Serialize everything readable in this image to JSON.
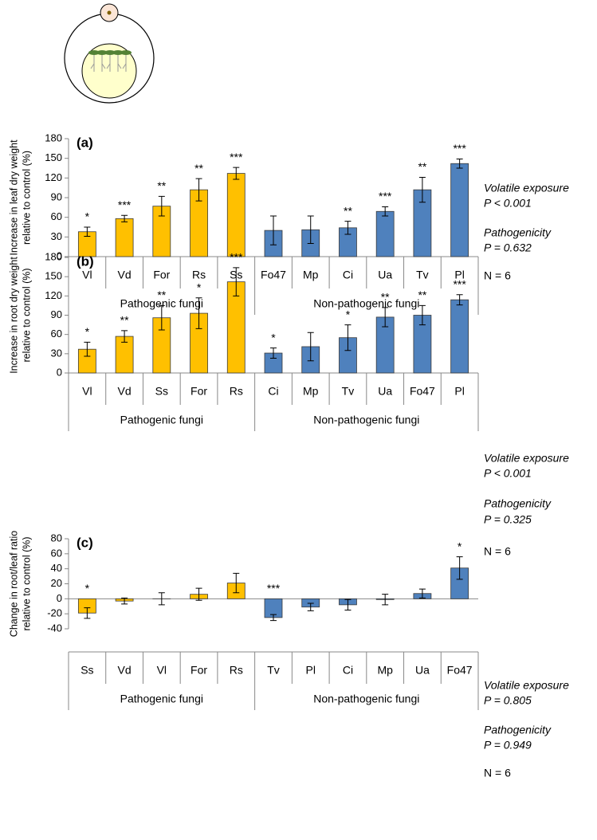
{
  "chart_data": [
    {
      "type": "bar",
      "panel_label": "(a)",
      "ylabel": [
        "Increase in leaf dry weight",
        "relative to control (%)"
      ],
      "categories": [
        "Vl",
        "Vd",
        "For",
        "Rs",
        "Ss",
        "Fo47",
        "Mp",
        "Ci",
        "Ua",
        "Tv",
        "Pl"
      ],
      "values": [
        38,
        58,
        77,
        102,
        127,
        40,
        41,
        44,
        69,
        102,
        142
      ],
      "errors": [
        7,
        5,
        15,
        17,
        9,
        22,
        21,
        10,
        7,
        19,
        7
      ],
      "significance": [
        "*",
        "***",
        "**",
        "**",
        "***",
        null,
        null,
        "**",
        "***",
        "**",
        "***"
      ],
      "colors": [
        "#ffc000",
        "#ffc000",
        "#ffc000",
        "#ffc000",
        "#ffc000",
        "#4f81bd",
        "#4f81bd",
        "#4f81bd",
        "#4f81bd",
        "#4f81bd",
        "#4f81bd"
      ],
      "groups": [
        "Pathogenic fungi",
        "Non-pathogenic fungi"
      ],
      "ylim": [
        0,
        180
      ],
      "yticks": [
        0,
        30,
        60,
        90,
        120,
        150,
        180
      ],
      "annotations": [
        [
          "Volatile exposure",
          "P < 0.001"
        ],
        [
          "Pathogenicity",
          "P = 0.632"
        ],
        [
          "N = 6"
        ]
      ]
    },
    {
      "type": "bar",
      "panel_label": "(b)",
      "ylabel": [
        "Increase in root dry weight",
        "relative to control (%)"
      ],
      "categories": [
        "Vl",
        "Vd",
        "Ss",
        "For",
        "Rs",
        "Ci",
        "Mp",
        "Tv",
        "Ua",
        "Fo47",
        "Pl"
      ],
      "values": [
        37,
        57,
        86,
        93,
        142,
        31,
        41,
        55,
        87,
        90,
        114
      ],
      "errors": [
        11,
        9,
        19,
        24,
        22,
        8,
        22,
        20,
        15,
        15,
        8
      ],
      "significance": [
        "*",
        "**",
        "**",
        "*",
        "***",
        "*",
        null,
        "*",
        "**",
        "**",
        "***"
      ],
      "colors": [
        "#ffc000",
        "#ffc000",
        "#ffc000",
        "#ffc000",
        "#ffc000",
        "#4f81bd",
        "#4f81bd",
        "#4f81bd",
        "#4f81bd",
        "#4f81bd",
        "#4f81bd"
      ],
      "groups": [
        "Pathogenic fungi",
        "Non-pathogenic fungi"
      ],
      "ylim": [
        0,
        180
      ],
      "yticks": [
        0,
        30,
        60,
        90,
        120,
        150,
        180
      ],
      "annotations": [
        [
          "Volatile exposure",
          "P < 0.001"
        ],
        [
          "Pathogenicity",
          "P = 0.325"
        ],
        [
          "N = 6"
        ]
      ]
    },
    {
      "type": "bar",
      "panel_label": "(c)",
      "ylabel": [
        "Change in root/leaf ratio",
        "relative to control (%)"
      ],
      "categories": [
        "Ss",
        "Vd",
        "Vl",
        "For",
        "Rs",
        "Tv",
        "Pl",
        "Ci",
        "Mp",
        "Ua",
        "Fo47"
      ],
      "values": [
        -19,
        -3,
        0,
        6,
        21,
        -25,
        -11,
        -8,
        -1,
        7,
        41
      ],
      "errors": [
        7,
        4,
        8,
        8,
        13,
        4,
        5,
        7,
        7,
        6,
        15
      ],
      "significance": [
        "*",
        null,
        null,
        null,
        null,
        "***",
        null,
        null,
        null,
        null,
        "*"
      ],
      "colors": [
        "#ffc000",
        "#ffc000",
        "#ffc000",
        "#ffc000",
        "#ffc000",
        "#4f81bd",
        "#4f81bd",
        "#4f81bd",
        "#4f81bd",
        "#4f81bd",
        "#4f81bd"
      ],
      "groups": [
        "Pathogenic fungi",
        "Non-pathogenic fungi"
      ],
      "ylim": [
        -40,
        80
      ],
      "yticks": [
        -40,
        -20,
        0,
        20,
        40,
        60,
        80
      ],
      "annotations": [
        [
          "Volatile exposure",
          "P = 0.805"
        ],
        [
          "Pathogenicity",
          "P = 0.949"
        ],
        [
          "N = 6"
        ]
      ]
    }
  ]
}
